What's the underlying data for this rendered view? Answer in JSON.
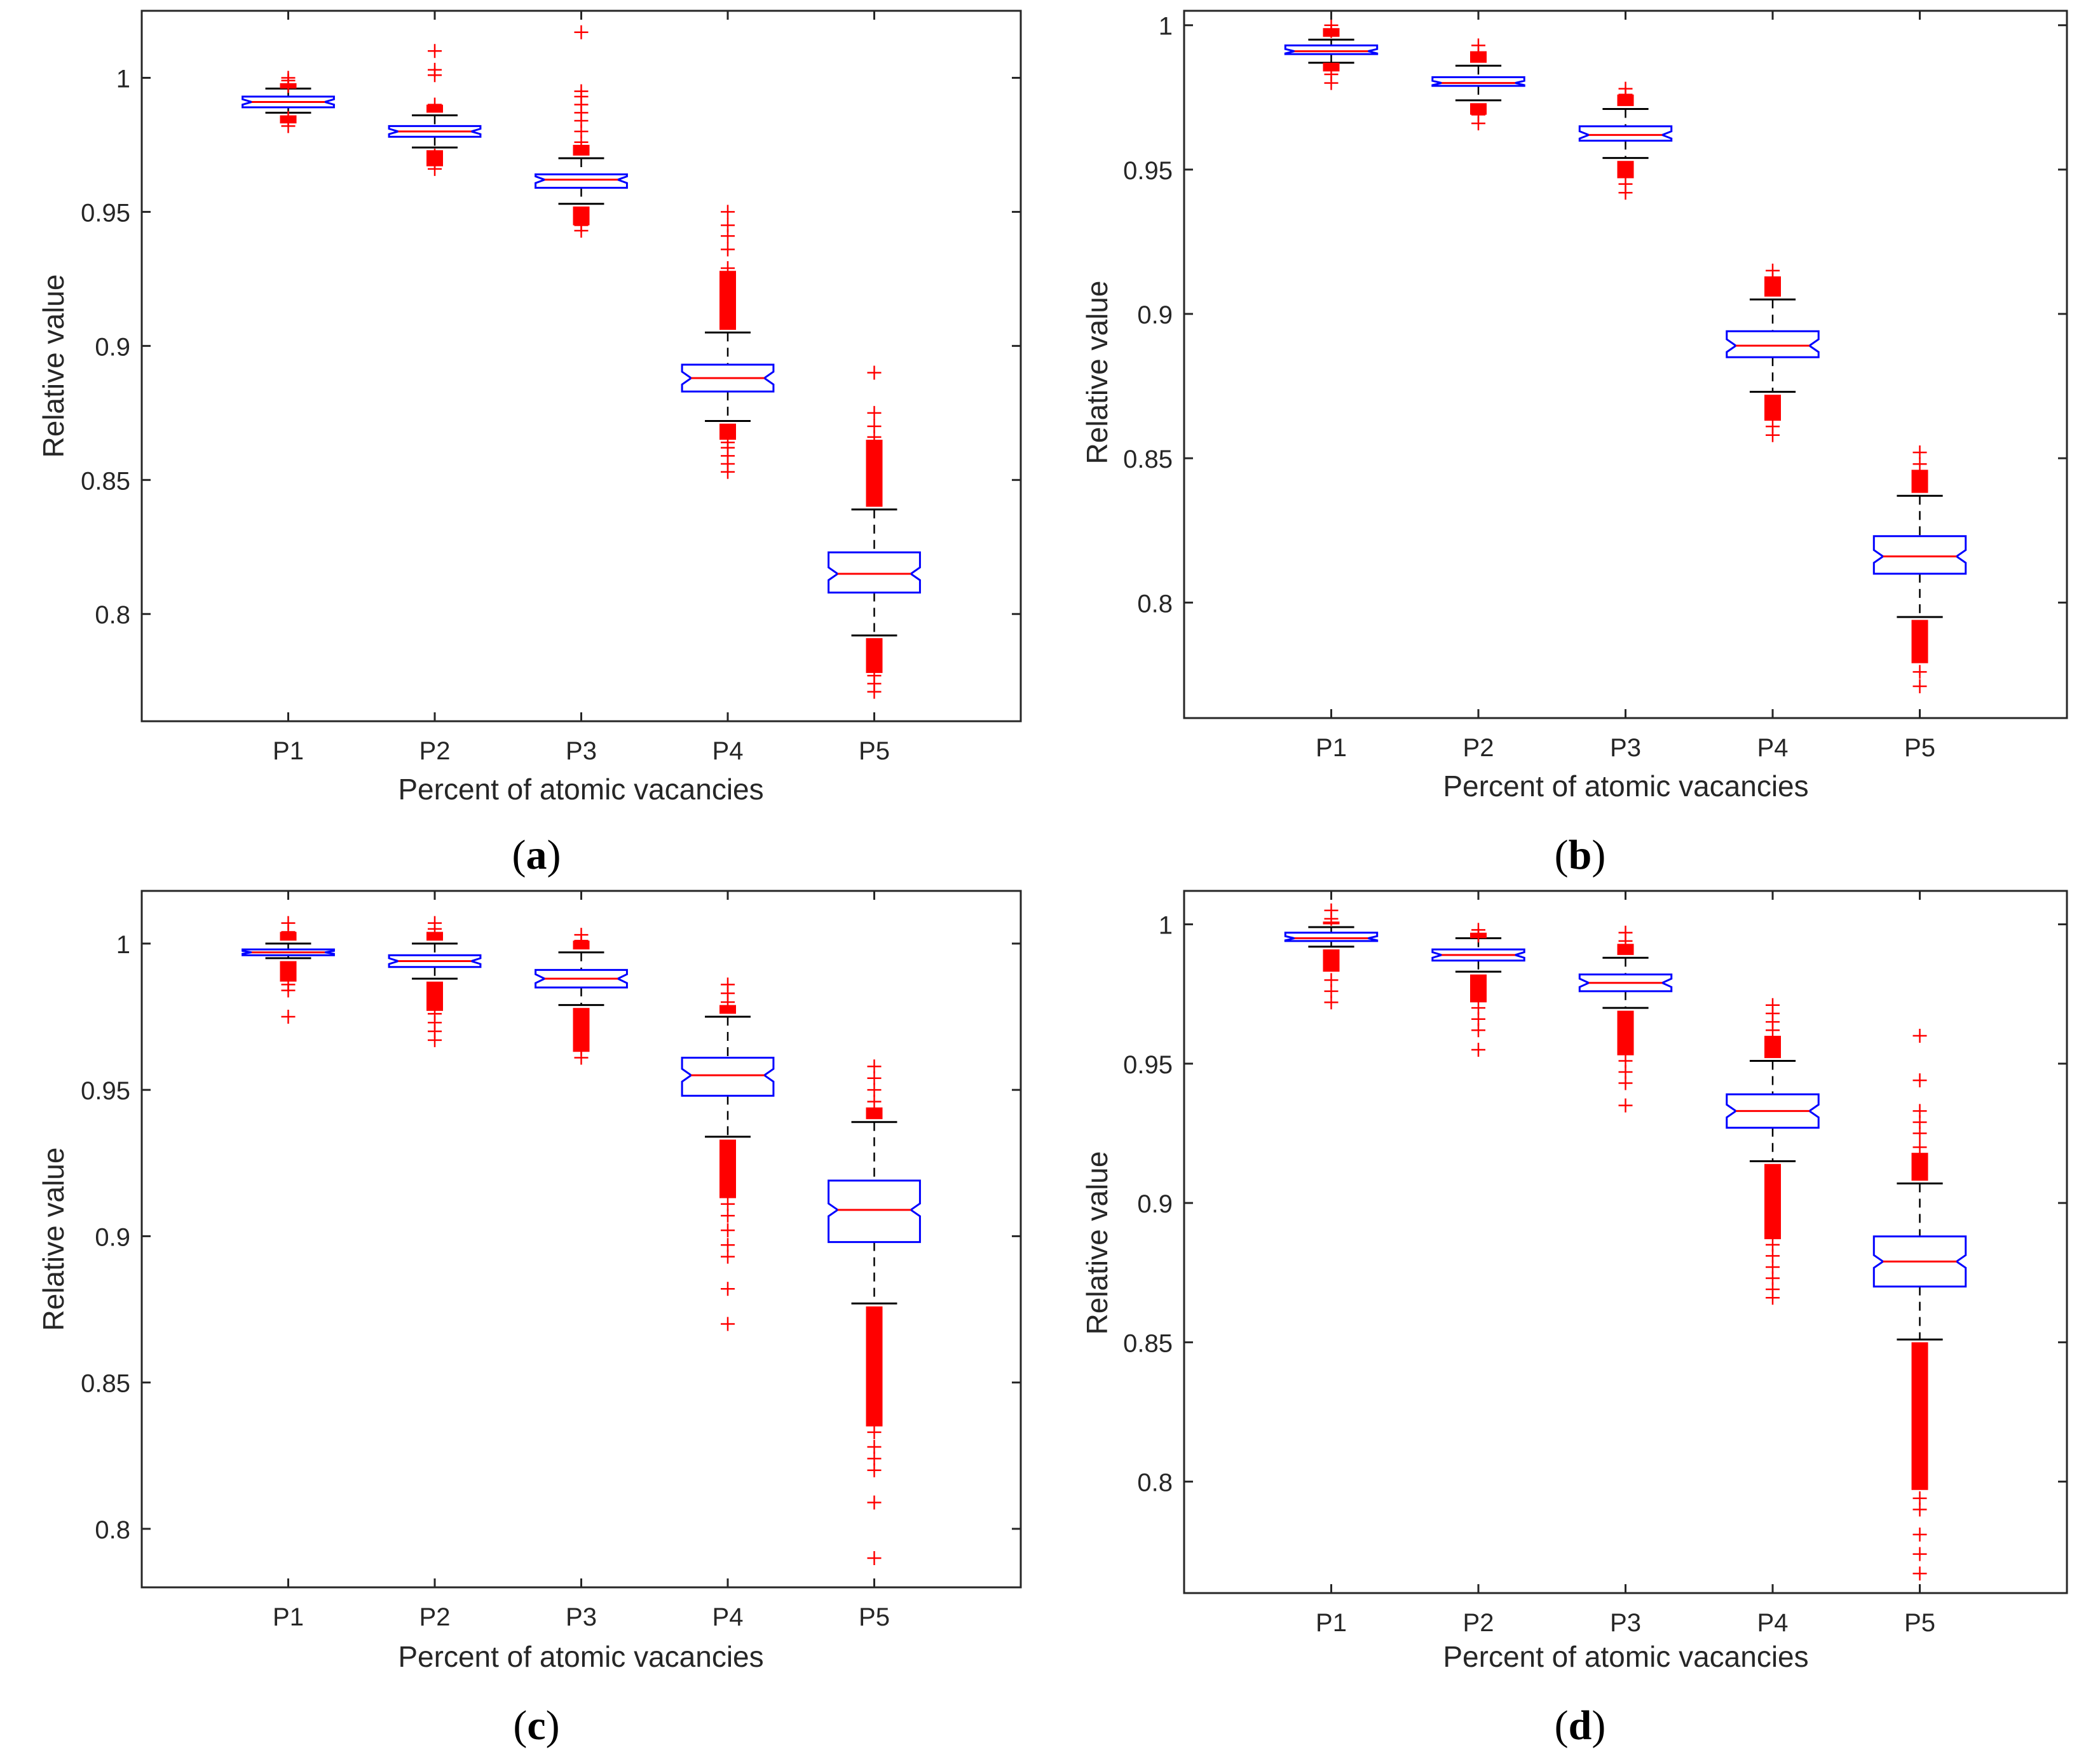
{
  "figure": {
    "colors": {
      "box": "#0000ff",
      "median": "#ff0000",
      "outlier": "#ff0000",
      "whisker": "#000000",
      "axis": "#262626"
    }
  },
  "chart_data": [
    {
      "type": "boxplot",
      "panel_label": "a",
      "xlabel": "Percent of atomic vacancies",
      "ylabel": "Relative value",
      "ylim": [
        0.76,
        1.025
      ],
      "yticks": [
        0.8,
        0.85,
        0.9,
        0.95,
        1
      ],
      "ytick_labels": [
        "0.8",
        "0.85",
        "0.9",
        "0.95",
        "1"
      ],
      "categories": [
        "P1",
        "P2",
        "P3",
        "P4",
        "P5"
      ],
      "boxes": [
        {
          "q1": 0.989,
          "median": 0.991,
          "q3": 0.993,
          "whisker_low": 0.987,
          "whisker_high": 0.996,
          "out_low": [
            0.982,
            0.985
          ],
          "out_high": [
            0.997,
            0.999,
            1.0
          ],
          "dense_low": [
            0.983,
            0.986
          ],
          "dense_high": [
            0.996,
            0.998
          ]
        },
        {
          "q1": 0.978,
          "median": 0.98,
          "q3": 0.982,
          "whisker_low": 0.974,
          "whisker_high": 0.986,
          "out_low": [
            0.966,
            0.969,
            0.971
          ],
          "out_high": [
            0.99,
            1.001,
            1.003,
            1.01
          ],
          "dense_low": [
            0.967,
            0.973
          ],
          "dense_high": [
            0.987,
            0.99
          ]
        },
        {
          "q1": 0.959,
          "median": 0.962,
          "q3": 0.964,
          "whisker_low": 0.953,
          "whisker_high": 0.97,
          "out_low": [
            0.943,
            0.945,
            0.947
          ],
          "out_high": [
            0.976,
            0.98,
            0.984,
            0.987,
            0.99,
            0.993,
            0.995,
            1.017
          ],
          "dense_low": [
            0.945,
            0.952
          ],
          "dense_high": [
            0.971,
            0.975
          ]
        },
        {
          "q1": 0.883,
          "median": 0.888,
          "q3": 0.893,
          "whisker_low": 0.872,
          "whisker_high": 0.905,
          "out_low": [
            0.853,
            0.856,
            0.859,
            0.862,
            0.864
          ],
          "out_high": [
            0.929,
            0.936,
            0.941,
            0.945,
            0.95
          ],
          "dense_low": [
            0.865,
            0.871
          ],
          "dense_high": [
            0.906,
            0.928
          ]
        },
        {
          "q1": 0.808,
          "median": 0.815,
          "q3": 0.823,
          "whisker_low": 0.792,
          "whisker_high": 0.839,
          "out_low": [
            0.771,
            0.774,
            0.777
          ],
          "out_high": [
            0.866,
            0.87,
            0.875,
            0.89
          ],
          "dense_low": [
            0.778,
            0.791
          ],
          "dense_high": [
            0.84,
            0.865
          ]
        }
      ]
    },
    {
      "type": "boxplot",
      "panel_label": "b",
      "xlabel": "Percent of atomic vacancies",
      "ylabel": "Relative value",
      "ylim": [
        0.76,
        1.005
      ],
      "yticks": [
        0.8,
        0.85,
        0.9,
        0.95,
        1
      ],
      "ytick_labels": [
        "0.8",
        "0.85",
        "0.9",
        "0.95",
        "1"
      ],
      "categories": [
        "P1",
        "P2",
        "P3",
        "P4",
        "P5"
      ],
      "boxes": [
        {
          "q1": 0.99,
          "median": 0.991,
          "q3": 0.993,
          "whisker_low": 0.987,
          "whisker_high": 0.995,
          "out_low": [
            0.98,
            0.983
          ],
          "out_high": [
            0.998,
            1.0
          ],
          "dense_low": [
            0.984,
            0.987
          ],
          "dense_high": [
            0.996,
            0.999
          ]
        },
        {
          "q1": 0.979,
          "median": 0.98,
          "q3": 0.982,
          "whisker_low": 0.974,
          "whisker_high": 0.986,
          "out_low": [
            0.966,
            0.969
          ],
          "out_high": [
            0.99,
            0.993
          ],
          "dense_low": [
            0.969,
            0.973
          ],
          "dense_high": [
            0.987,
            0.991
          ]
        },
        {
          "q1": 0.96,
          "median": 0.962,
          "q3": 0.965,
          "whisker_low": 0.954,
          "whisker_high": 0.971,
          "out_low": [
            0.942,
            0.945
          ],
          "out_high": [
            0.976,
            0.978
          ],
          "dense_low": [
            0.947,
            0.953
          ],
          "dense_high": [
            0.972,
            0.976
          ]
        },
        {
          "q1": 0.885,
          "median": 0.889,
          "q3": 0.894,
          "whisker_low": 0.873,
          "whisker_high": 0.905,
          "out_low": [
            0.858,
            0.861
          ],
          "out_high": [
            0.912,
            0.915
          ],
          "dense_low": [
            0.863,
            0.872
          ],
          "dense_high": [
            0.906,
            0.913
          ]
        },
        {
          "q1": 0.81,
          "median": 0.816,
          "q3": 0.823,
          "whisker_low": 0.795,
          "whisker_high": 0.837,
          "out_low": [
            0.771,
            0.776
          ],
          "out_high": [
            0.848,
            0.852
          ],
          "dense_low": [
            0.779,
            0.794
          ],
          "dense_high": [
            0.838,
            0.846
          ]
        }
      ]
    },
    {
      "type": "boxplot",
      "panel_label": "c",
      "xlabel": "Percent of atomic vacancies",
      "ylabel": "Relative value",
      "ylim": [
        0.78,
        1.018
      ],
      "yticks": [
        0.8,
        0.85,
        0.9,
        0.95,
        1
      ],
      "ytick_labels": [
        "0.8",
        "0.85",
        "0.9",
        "0.95",
        "1"
      ],
      "categories": [
        "P1",
        "P2",
        "P3",
        "P4",
        "P5"
      ],
      "boxes": [
        {
          "q1": 0.996,
          "median": 0.997,
          "q3": 0.998,
          "whisker_low": 0.995,
          "whisker_high": 1.0,
          "out_low": [
            0.975,
            0.984,
            0.986
          ],
          "out_high": [
            1.004,
            1.007
          ],
          "dense_low": [
            0.987,
            0.994
          ],
          "dense_high": [
            1.001,
            1.004
          ]
        },
        {
          "q1": 0.992,
          "median": 0.994,
          "q3": 0.996,
          "whisker_low": 0.988,
          "whisker_high": 1.0,
          "out_low": [
            0.967,
            0.97,
            0.973,
            0.976
          ],
          "out_high": [
            1.005,
            1.007
          ],
          "dense_low": [
            0.977,
            0.987
          ],
          "dense_high": [
            1.001,
            1.004
          ]
        },
        {
          "q1": 0.985,
          "median": 0.988,
          "q3": 0.991,
          "whisker_low": 0.979,
          "whisker_high": 0.997,
          "out_low": [
            0.961,
            0.964
          ],
          "out_high": [
            1.001,
            1.003
          ],
          "dense_low": [
            0.963,
            0.978
          ],
          "dense_high": [
            0.998,
            1.001
          ]
        },
        {
          "q1": 0.948,
          "median": 0.955,
          "q3": 0.961,
          "whisker_low": 0.934,
          "whisker_high": 0.975,
          "out_low": [
            0.87,
            0.882,
            0.893,
            0.897,
            0.902,
            0.907,
            0.911
          ],
          "out_high": [
            0.98,
            0.983,
            0.986
          ],
          "dense_low": [
            0.913,
            0.933
          ],
          "dense_high": [
            0.976,
            0.979
          ]
        },
        {
          "q1": 0.898,
          "median": 0.909,
          "q3": 0.919,
          "whisker_low": 0.877,
          "whisker_high": 0.939,
          "out_low": [
            0.79,
            0.809,
            0.82,
            0.824,
            0.828,
            0.833
          ],
          "out_high": [
            0.946,
            0.95,
            0.954,
            0.958
          ],
          "dense_low": [
            0.835,
            0.876
          ],
          "dense_high": [
            0.94,
            0.944
          ]
        }
      ]
    },
    {
      "type": "boxplot",
      "panel_label": "d",
      "xlabel": "Percent of atomic vacancies",
      "ylabel": "Relative value",
      "ylim": [
        0.76,
        1.012
      ],
      "yticks": [
        0.8,
        0.85,
        0.9,
        0.95,
        1
      ],
      "ytick_labels": [
        "0.8",
        "0.85",
        "0.9",
        "0.95",
        "1"
      ],
      "categories": [
        "P1",
        "P2",
        "P3",
        "P4",
        "P5"
      ],
      "boxes": [
        {
          "q1": 0.994,
          "median": 0.995,
          "q3": 0.997,
          "whisker_low": 0.992,
          "whisker_high": 0.999,
          "out_low": [
            0.972,
            0.976,
            0.98
          ],
          "out_high": [
            1.002,
            1.005
          ],
          "dense_low": [
            0.983,
            0.991
          ],
          "dense_high": [
            1.0,
            1.001
          ]
        },
        {
          "q1": 0.987,
          "median": 0.989,
          "q3": 0.991,
          "whisker_low": 0.983,
          "whisker_high": 0.995,
          "out_low": [
            0.955,
            0.962,
            0.966,
            0.97
          ],
          "out_high": [
            0.996,
            0.998
          ],
          "dense_low": [
            0.972,
            0.982
          ],
          "dense_high": [
            0.995,
            0.997
          ]
        },
        {
          "q1": 0.976,
          "median": 0.979,
          "q3": 0.982,
          "whisker_low": 0.97,
          "whisker_high": 0.988,
          "out_low": [
            0.935,
            0.943,
            0.947,
            0.951
          ],
          "out_high": [
            0.994,
            0.997
          ],
          "dense_low": [
            0.953,
            0.969
          ],
          "dense_high": [
            0.989,
            0.993
          ]
        },
        {
          "q1": 0.927,
          "median": 0.933,
          "q3": 0.939,
          "whisker_low": 0.915,
          "whisker_high": 0.951,
          "out_low": [
            0.866,
            0.869,
            0.873,
            0.877,
            0.881,
            0.885
          ],
          "out_high": [
            0.962,
            0.965,
            0.968,
            0.971
          ],
          "dense_low": [
            0.887,
            0.914
          ],
          "dense_high": [
            0.952,
            0.96
          ]
        },
        {
          "q1": 0.87,
          "median": 0.879,
          "q3": 0.888,
          "whisker_low": 0.851,
          "whisker_high": 0.907,
          "out_low": [
            0.767,
            0.774,
            0.781,
            0.79,
            0.794
          ],
          "out_high": [
            0.92,
            0.925,
            0.929,
            0.933,
            0.944,
            0.96
          ],
          "dense_low": [
            0.797,
            0.85
          ],
          "dense_high": [
            0.908,
            0.918
          ]
        }
      ]
    }
  ]
}
